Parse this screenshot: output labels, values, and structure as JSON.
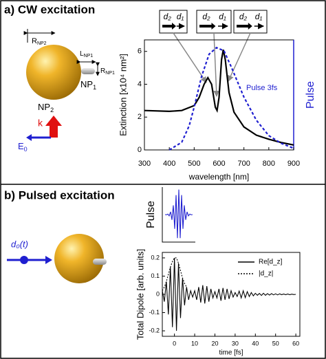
{
  "panels": {
    "a": "a) CW excitation",
    "b": "b) Pulsed excitation"
  },
  "diagram_a": {
    "r_np2": {
      "text": "R",
      "sub": "NP2"
    },
    "l_np1": {
      "text": "L",
      "sub": "NP1"
    },
    "r_np1": {
      "text": "R",
      "sub": "NP1"
    },
    "np1": {
      "text": "NP",
      "sub": "1"
    },
    "np2": {
      "text": "NP",
      "sub": "2"
    },
    "k": "k",
    "e0": {
      "text": "E",
      "sub": "0"
    },
    "inset_labels": [
      "d₂",
      "d₁"
    ]
  },
  "diagram_b": {
    "source": "d₀(t)"
  },
  "chart_data": [
    {
      "type": "line",
      "xlabel": "wavelength [nm]",
      "ylabel": "Extinction [x10⁴ nm²]",
      "y2label": "Pulse",
      "annotation": "Pulse 3fs",
      "xlim": [
        300,
        900
      ],
      "xticks": [
        300,
        400,
        500,
        600,
        700,
        800,
        900
      ],
      "ylim": [
        0,
        6.7
      ],
      "yticks": [
        0,
        2,
        4,
        6
      ],
      "y2lim": [
        0,
        1
      ],
      "series": [
        {
          "name": "Extinction",
          "color": "#000000",
          "x": [
            300,
            400,
            450,
            500,
            520,
            540,
            555,
            570,
            585,
            592,
            600,
            610,
            617,
            625,
            640,
            660,
            700,
            750,
            800,
            850,
            900
          ],
          "values": [
            2.4,
            2.35,
            2.4,
            2.7,
            3.2,
            4.0,
            4.4,
            4.0,
            2.6,
            2.4,
            3.2,
            5.5,
            6.1,
            5.5,
            3.5,
            2.3,
            1.4,
            0.9,
            0.65,
            0.45,
            0.3
          ]
        },
        {
          "name": "Pulse 3fs",
          "color": "#1f1fd0",
          "axis": "y2",
          "dash": true,
          "x": [
            400,
            450,
            480,
            500,
            530,
            560,
            590,
            620,
            650,
            700,
            750,
            800,
            850,
            900
          ],
          "values": [
            0,
            0.07,
            0.22,
            0.39,
            0.67,
            0.87,
            0.93,
            0.9,
            0.75,
            0.48,
            0.27,
            0.13,
            0.06,
            0.015
          ]
        }
      ]
    },
    {
      "type": "line",
      "ylabel": "Pulse",
      "xlim": [
        -6,
        6
      ],
      "ylim": [
        -1.1,
        1.1
      ],
      "series": [
        {
          "name": "Pulse",
          "color": "#1f1fd0",
          "x": [
            -5,
            -4.5,
            -4,
            -3.5,
            -3,
            -2.5,
            -2,
            -1.5,
            -1,
            -0.5,
            0,
            0.5,
            1,
            1.5,
            2,
            2.5,
            3,
            3.5,
            4,
            4.5,
            5
          ],
          "values": [
            0,
            -0.01,
            0.02,
            -0.05,
            0.11,
            -0.21,
            0.37,
            -0.57,
            0.78,
            -0.94,
            1,
            -0.94,
            0.78,
            -0.57,
            0.37,
            -0.21,
            0.11,
            -0.05,
            0.02,
            -0.01,
            0
          ]
        }
      ]
    },
    {
      "type": "line",
      "xlabel": "time [fs]",
      "ylabel": "Total Dipole [arb. units]",
      "legend": "upper right",
      "xlim": [
        -6,
        62
      ],
      "xticks": [
        0,
        10,
        20,
        30,
        40,
        50,
        60
      ],
      "ylim": [
        -0.23,
        0.23
      ],
      "yticks": [
        -0.2,
        -0.1,
        0,
        0.1,
        0.2
      ],
      "series": [
        {
          "name": "Re[d_z]",
          "color": "#000000",
          "x": [
            -6,
            -5,
            -4,
            -3,
            -2,
            -1,
            0,
            1,
            2,
            3,
            4,
            5,
            6,
            7,
            8,
            9,
            10,
            11,
            12,
            13,
            14,
            15,
            16,
            17,
            18,
            19,
            20,
            21,
            22,
            23,
            24,
            25,
            26,
            27,
            28,
            29,
            30,
            31,
            32,
            33,
            34,
            35,
            36,
            37,
            38,
            39,
            40,
            41,
            42,
            43,
            44,
            45,
            46,
            47,
            48,
            49,
            50,
            51,
            52,
            53,
            54,
            55,
            56,
            57,
            58,
            59,
            60
          ],
          "values": [
            0.02,
            -0.04,
            0.07,
            -0.11,
            0.15,
            -0.18,
            0.2,
            -0.2,
            0.17,
            -0.13,
            0.09,
            -0.06,
            0.04,
            -0.03,
            0.02,
            -0.015,
            0.02,
            -0.03,
            0.04,
            -0.045,
            0.05,
            -0.05,
            0.045,
            -0.04,
            0.03,
            -0.02,
            0.015,
            -0.02,
            0.03,
            -0.035,
            0.035,
            -0.03,
            0.03,
            -0.025,
            0.02,
            -0.015,
            0.01,
            -0.012,
            0.018,
            -0.02,
            0.02,
            -0.018,
            0.015,
            -0.012,
            0.01,
            -0.008,
            0.006,
            -0.005,
            0.005,
            -0.006,
            0.006,
            -0.005,
            0.004,
            -0.004,
            0.004,
            -0.003,
            0.003,
            -0.003,
            0.003,
            -0.002,
            0.002,
            -0.002,
            0.002,
            -0.002,
            0.001,
            -0.001,
            0
          ]
        },
        {
          "name": "|d_z|",
          "color": "#000000",
          "dash": true,
          "x": [
            -6,
            -5,
            -4,
            -3,
            -2,
            -1,
            0,
            1,
            2,
            3,
            4,
            5,
            6
          ],
          "values": [
            0.02,
            0.04,
            0.07,
            0.11,
            0.15,
            0.18,
            0.2,
            0.2,
            0.17,
            0.13,
            0.09,
            0.06,
            0.04
          ]
        }
      ]
    }
  ]
}
